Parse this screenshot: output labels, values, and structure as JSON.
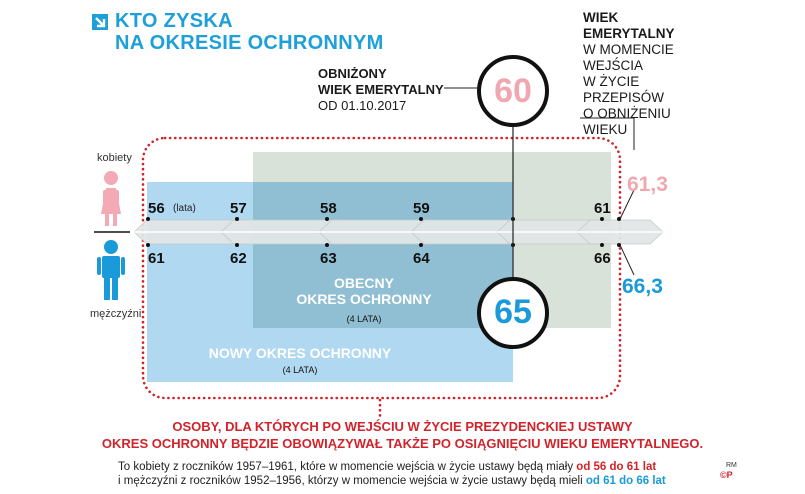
{
  "title": {
    "line1": "KTO ZYSKA",
    "line2": "NA OKRESIE OCHRONNYM"
  },
  "side_note": {
    "bold1": "WIEK",
    "bold2": "EMERYTALNY",
    "rest": [
      "W MOMENCIE",
      "WEJŚCIA",
      "W ŻYCIE",
      "PRZEPISÓW",
      "O OBNIŻENIU",
      "WIEKU"
    ]
  },
  "lowered_age": {
    "line1": "OBNIŻONY",
    "line2": "WIEK EMERYTALNY",
    "line3": "OD 01.10.2017"
  },
  "circles": {
    "women": "60",
    "men": "65"
  },
  "labels": {
    "women": "kobiety",
    "men": "mężczyźni",
    "lata": "(lata)"
  },
  "women_ages": [
    "56",
    "57",
    "58",
    "59",
    "61"
  ],
  "men_ages": [
    "61",
    "62",
    "63",
    "64",
    "66"
  ],
  "side_values": {
    "women": "61,3",
    "men": "66,3"
  },
  "boxes": {
    "current_title1": "OBECNY",
    "current_title2": "OKRES OCHRONNY",
    "current_sub": "(4 LATA)",
    "new_title": "NOWY OKRES OCHRONNY",
    "new_sub": "(4 LATA)"
  },
  "bottom_note": {
    "line1": "OSOBY, DLA KTÓRYCH PO WEJŚCIU W ŻYCIE PREZYDENCKIEJ USTAWY",
    "line2": "OKRES OCHRONNY BĘDZIE OBOWIĄZYWAŁ TAKŻE PO OSIĄGNIĘCIU WIEKU EMERYTALNEGO."
  },
  "footer": {
    "l1a": "To kobiety z roczników 1957–1961, które w momencie wejścia w życie ustawy będą miały ",
    "l1b": "od 56 do 61 lat",
    "l2a": "i  mężczyźni z roczników 1952–1956, którzy w momencie wejścia w życie ustawy będą mieli ",
    "l2b": "od 61 do 66 lat"
  },
  "credit": {
    "rm": "RM",
    "cp": "©P"
  },
  "colors": {
    "accent": "#1da0d9",
    "red": "#d2232a",
    "pink": "#f0a8b0",
    "blue": "#1a9ad8"
  }
}
